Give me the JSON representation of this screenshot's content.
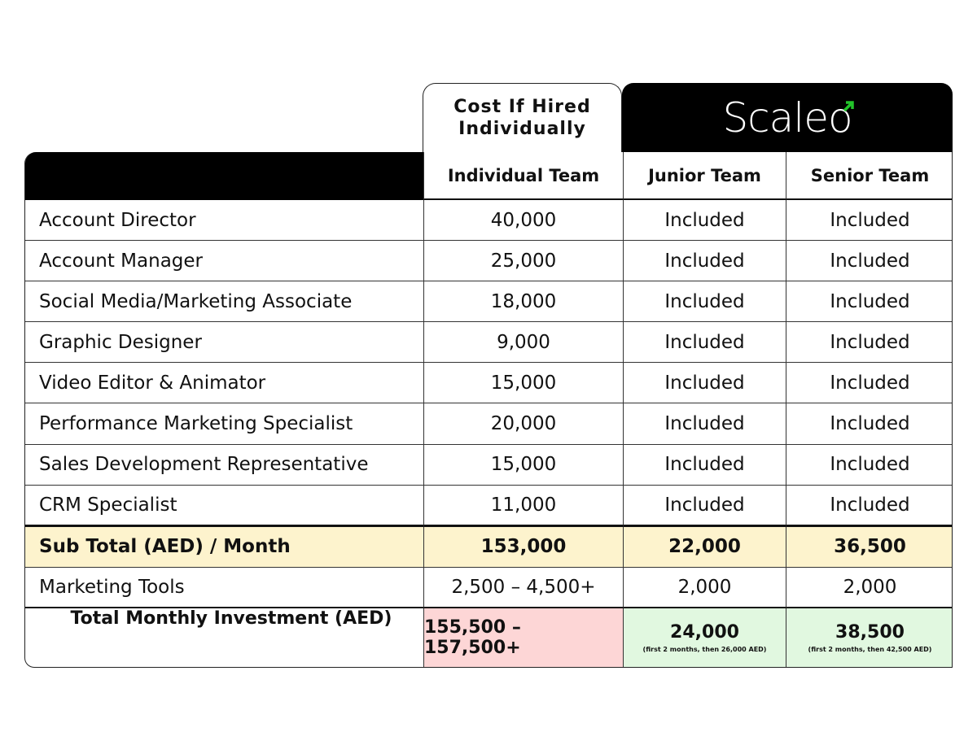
{
  "header": {
    "cost_title": "Cost If Hired Individually",
    "brand": "Scaleo",
    "brand_accent_color": "#22c32a"
  },
  "columns": [
    "Individual Team",
    "Junior Team",
    "Senior Team"
  ],
  "rows": [
    {
      "role": "Account Director",
      "individual": "40,000",
      "junior": "Included",
      "senior": "Included"
    },
    {
      "role": "Account Manager",
      "individual": "25,000",
      "junior": "Included",
      "senior": "Included"
    },
    {
      "role": "Social Media/Marketing Associate",
      "individual": "18,000",
      "junior": "Included",
      "senior": "Included"
    },
    {
      "role": "Graphic Designer",
      "individual": "9,000",
      "junior": "Included",
      "senior": "Included"
    },
    {
      "role": "Video Editor & Animator",
      "individual": "15,000",
      "junior": "Included",
      "senior": "Included"
    },
    {
      "role": "Performance Marketing Specialist",
      "individual": "20,000",
      "junior": "Included",
      "senior": "Included"
    },
    {
      "role": "Sales Development Representative",
      "individual": "15,000",
      "junior": "Included",
      "senior": "Included"
    },
    {
      "role": "CRM Specialist",
      "individual": "11,000",
      "junior": "Included",
      "senior": "Included"
    }
  ],
  "subtotal": {
    "label": "Sub Total (AED) / Month",
    "individual": "153,000",
    "junior": "22,000",
    "senior": "36,500"
  },
  "tools": {
    "label": "Marketing Tools",
    "individual": "2,500 – 4,500+",
    "junior": "2,000",
    "senior": "2,000"
  },
  "total": {
    "label": "Total Monthly Investment (AED)",
    "individual": "155,500 – 157,500+",
    "junior": "24,000",
    "junior_note": "(first 2 months, then 26,000 AED)",
    "senior": "38,500",
    "senior_note": "(first 2 months, then 42,500 AED)"
  }
}
